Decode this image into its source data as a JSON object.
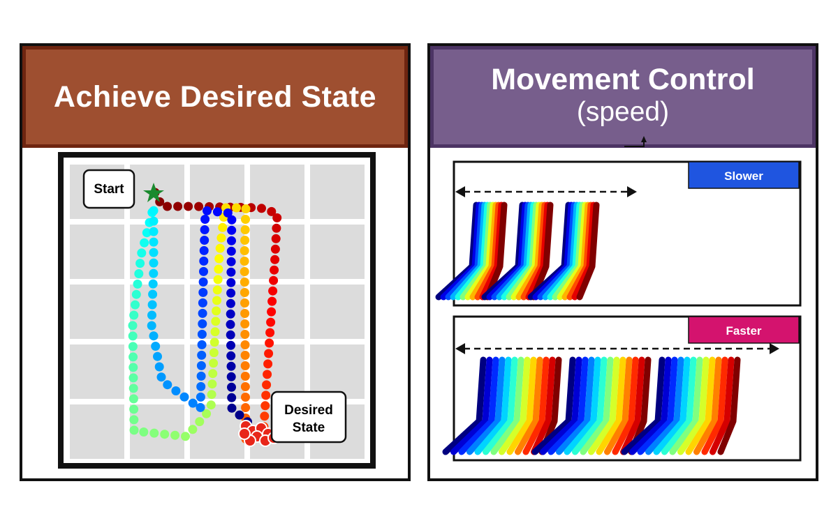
{
  "left_panel": {
    "title": "Achieve Desired State",
    "start_label": "Start",
    "goal_label_line1": "Desired",
    "goal_label_line2": "State",
    "colors": {
      "header": "#9e4f30",
      "header_border": "#6e2510",
      "grid_cell": "#dcdcdc"
    }
  },
  "right_panel": {
    "title": "Movement Control",
    "subtitle": "(speed)",
    "slower_label": "Slower",
    "faster_label": "Faster",
    "colors": {
      "header": "#775e8c",
      "header_border": "#4c3464",
      "slower_badge": "#1f55e0",
      "faster_badge": "#d4136e"
    }
  }
}
